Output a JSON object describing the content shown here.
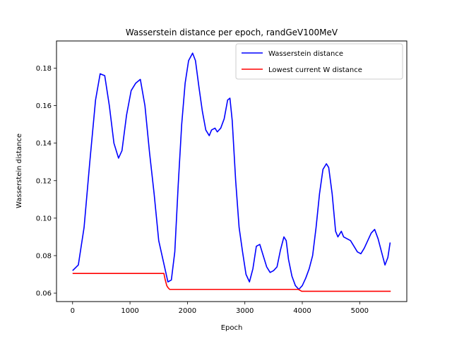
{
  "chart_data": {
    "type": "line",
    "title": "Wasserstein distance per epoch, randGeV100MeV",
    "xlabel": "Epoch",
    "ylabel": "Wasserstein distance",
    "xlim": [
      -280,
      5820
    ],
    "ylim": [
      0.0555,
      0.1945
    ],
    "xticks": [
      0,
      1000,
      2000,
      3000,
      4000,
      5000
    ],
    "yticks": [
      0.06,
      0.08,
      0.1,
      0.12,
      0.14,
      0.16,
      0.18
    ],
    "ytick_labels": [
      "0.06",
      "0.08",
      "0.10",
      "0.12",
      "0.14",
      "0.16",
      "0.18"
    ],
    "grid": false,
    "legend_position": "top-right",
    "series": [
      {
        "name": "Wasserstein distance",
        "color": "#0000ff",
        "x": [
          0,
          100,
          200,
          300,
          400,
          480,
          560,
          640,
          720,
          800,
          860,
          940,
          1020,
          1100,
          1180,
          1260,
          1340,
          1420,
          1500,
          1580,
          1660,
          1720,
          1780,
          1840,
          1900,
          1960,
          2020,
          2090,
          2140,
          2200,
          2260,
          2320,
          2380,
          2420,
          2480,
          2520,
          2580,
          2640,
          2700,
          2740,
          2780,
          2840,
          2900,
          2960,
          3020,
          3080,
          3140,
          3200,
          3260,
          3320,
          3380,
          3440,
          3500,
          3560,
          3620,
          3680,
          3720,
          3760,
          3820,
          3880,
          3940,
          4000,
          4060,
          4120,
          4180,
          4240,
          4300,
          4360,
          4420,
          4460,
          4520,
          4580,
          4620,
          4680,
          4720,
          4780,
          4840,
          4900,
          4960,
          5020,
          5080,
          5140,
          5200,
          5260,
          5320,
          5380,
          5440,
          5490,
          5530
        ],
        "y": [
          0.072,
          0.075,
          0.095,
          0.13,
          0.163,
          0.177,
          0.176,
          0.16,
          0.14,
          0.132,
          0.136,
          0.155,
          0.168,
          0.172,
          0.174,
          0.16,
          0.135,
          0.113,
          0.088,
          0.077,
          0.066,
          0.067,
          0.082,
          0.118,
          0.15,
          0.172,
          0.184,
          0.188,
          0.184,
          0.17,
          0.157,
          0.147,
          0.144,
          0.147,
          0.148,
          0.146,
          0.148,
          0.153,
          0.163,
          0.164,
          0.152,
          0.12,
          0.095,
          0.082,
          0.07,
          0.066,
          0.073,
          0.085,
          0.086,
          0.08,
          0.074,
          0.071,
          0.072,
          0.074,
          0.083,
          0.09,
          0.088,
          0.078,
          0.069,
          0.064,
          0.062,
          0.064,
          0.068,
          0.073,
          0.08,
          0.095,
          0.113,
          0.126,
          0.129,
          0.127,
          0.113,
          0.093,
          0.09,
          0.093,
          0.09,
          0.089,
          0.088,
          0.085,
          0.082,
          0.081,
          0.084,
          0.088,
          0.092,
          0.094,
          0.089,
          0.082,
          0.075,
          0.079,
          0.087
        ]
      },
      {
        "name": "Lowest current W distance",
        "color": "#ff0000",
        "x": [
          0,
          1590,
          1610,
          1640,
          1660,
          1690,
          1700,
          3930,
          3960,
          3990,
          5540
        ],
        "y": [
          0.0705,
          0.0705,
          0.0675,
          0.064,
          0.063,
          0.062,
          0.062,
          0.062,
          0.0615,
          0.061,
          0.061
        ]
      }
    ]
  }
}
